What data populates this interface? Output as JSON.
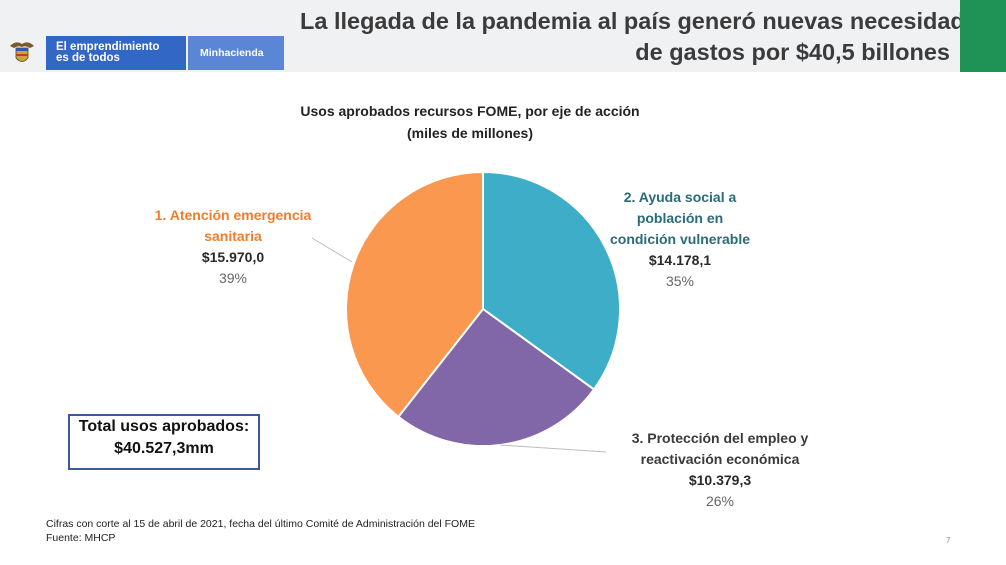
{
  "header": {
    "brand_line1": "El emprendimiento",
    "brand_line2": "es de todos",
    "ministry": "Minhacienda",
    "title_line1": "La llegada de la pandemia al país generó nuevas necesidades",
    "title_line2": "de gastos por $40,5 billones",
    "colors": {
      "brand_blue": "#3367c6",
      "ministry_blue": "#5b86d6",
      "accent_green": "#1f9255"
    }
  },
  "chart_data": {
    "type": "pie",
    "title": "Usos aprobados recursos FOME, por eje de acción",
    "subtitle": "(miles de millones)",
    "slices": [
      {
        "label_line1": "2. Ayuda social a",
        "label_line2": "población en",
        "label_line3": "condición vulnerable",
        "value": 14178.1,
        "value_label": "$14.178,1",
        "percent": "35%",
        "color": "#3eaec8",
        "label_color": "#2a6b79"
      },
      {
        "label_line1": "3. Protección del empleo y",
        "label_line2": "reactivación económica",
        "value": 10379.3,
        "value_label": "$10.379,3",
        "percent": "26%",
        "color": "#8166a8",
        "label_color": "#3a3a3a"
      },
      {
        "label_line1": "1. Atención emergencia",
        "label_line2": "sanitaria",
        "value": 15970.0,
        "value_label": "$15.970,0",
        "percent": "39%",
        "color": "#fb9850",
        "label_color": "#f07d2e"
      }
    ]
  },
  "total": {
    "line1": "Total usos aprobados:",
    "line2": "$40.527,3mm"
  },
  "footnote": {
    "line1": "Cifras con corte al 15 de abril de 2021, fecha del último Comité de Administración del FOME",
    "line2": "Fuente: MHCP"
  },
  "page_number": "7"
}
